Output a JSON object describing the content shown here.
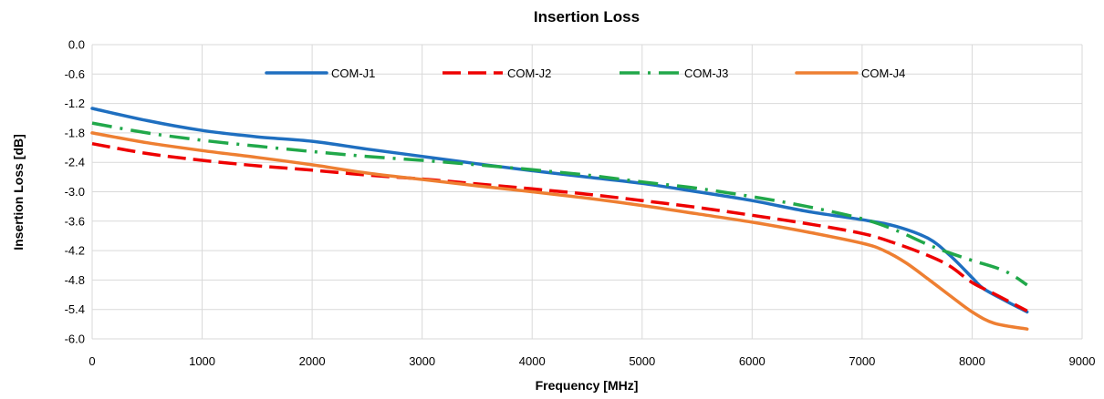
{
  "chart_data": {
    "type": "line",
    "title": "Insertion Loss",
    "xlabel": "Frequency [MHz]",
    "ylabel": "Insertion Loss [dB]",
    "xlim": [
      0,
      9000
    ],
    "ylim": [
      -6.0,
      0.0
    ],
    "x_ticks": [
      "0",
      "1000",
      "2000",
      "3000",
      "4000",
      "5000",
      "6000",
      "7000",
      "8000",
      "9000"
    ],
    "y_ticks": [
      "0.0",
      "-0.6",
      "-1.2",
      "-1.8",
      "-2.4",
      "-3.0",
      "-3.6",
      "-4.2",
      "-4.8",
      "-5.4",
      "-6.0"
    ],
    "grid": true,
    "legend_position": "top",
    "series": [
      {
        "name": "COM-J1",
        "color": "#1f6fc0",
        "style": "solid",
        "x": [
          0,
          500,
          1000,
          1500,
          2000,
          2500,
          3000,
          3500,
          4000,
          4500,
          5000,
          5500,
          6000,
          6500,
          7000,
          7300,
          7600,
          7800,
          8000,
          8100,
          8300,
          8500
        ],
        "y": [
          -1.3,
          -1.55,
          -1.75,
          -1.88,
          -1.97,
          -2.13,
          -2.28,
          -2.43,
          -2.57,
          -2.7,
          -2.83,
          -3.0,
          -3.18,
          -3.4,
          -3.57,
          -3.7,
          -3.95,
          -4.3,
          -4.75,
          -4.97,
          -5.22,
          -5.45
        ]
      },
      {
        "name": "COM-J2",
        "color": "#ee0000",
        "style": "dashed",
        "x": [
          0,
          500,
          1000,
          1500,
          2000,
          2500,
          3000,
          3500,
          4000,
          4500,
          5000,
          5500,
          6000,
          6500,
          7000,
          7300,
          7600,
          7800,
          8000,
          8200,
          8500
        ],
        "y": [
          -2.02,
          -2.22,
          -2.36,
          -2.47,
          -2.56,
          -2.66,
          -2.74,
          -2.84,
          -2.94,
          -3.05,
          -3.18,
          -3.32,
          -3.48,
          -3.65,
          -3.85,
          -4.05,
          -4.3,
          -4.52,
          -4.85,
          -5.08,
          -5.43
        ]
      },
      {
        "name": "COM-J3",
        "color": "#21a84a",
        "style": "dashdot",
        "x": [
          0,
          500,
          1000,
          1500,
          2000,
          2500,
          3000,
          3500,
          4000,
          4500,
          5000,
          5500,
          6000,
          6500,
          7000,
          7300,
          7600,
          7800,
          8000,
          8300,
          8500
        ],
        "y": [
          -1.6,
          -1.8,
          -1.95,
          -2.07,
          -2.18,
          -2.28,
          -2.36,
          -2.45,
          -2.55,
          -2.66,
          -2.8,
          -2.93,
          -3.1,
          -3.3,
          -3.55,
          -3.78,
          -4.08,
          -4.25,
          -4.4,
          -4.62,
          -4.9
        ]
      },
      {
        "name": "COM-J4",
        "color": "#ee7f32",
        "style": "solid",
        "x": [
          0,
          500,
          1000,
          1500,
          2000,
          2500,
          3000,
          3500,
          4000,
          4500,
          5000,
          5500,
          6000,
          6500,
          7000,
          7200,
          7400,
          7600,
          7800,
          8000,
          8200,
          8500
        ],
        "y": [
          -1.8,
          -2.0,
          -2.16,
          -2.3,
          -2.45,
          -2.62,
          -2.75,
          -2.88,
          -3.0,
          -3.13,
          -3.28,
          -3.45,
          -3.62,
          -3.82,
          -4.05,
          -4.2,
          -4.45,
          -4.78,
          -5.12,
          -5.45,
          -5.68,
          -5.8
        ]
      }
    ]
  }
}
